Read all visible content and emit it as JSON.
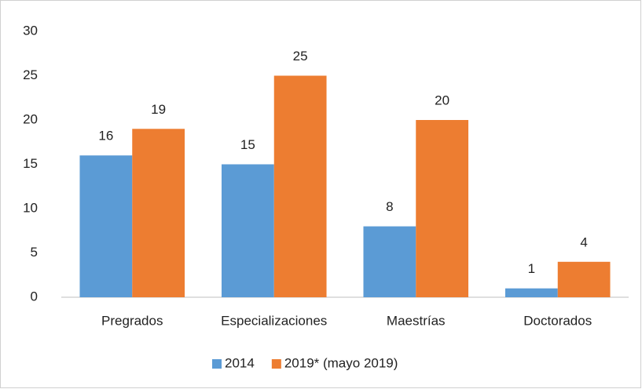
{
  "chart_data": {
    "type": "bar",
    "categories": [
      "Pregrados",
      "Especializaciones",
      "Maestrías",
      "Doctorados"
    ],
    "series": [
      {
        "name": "2014",
        "color": "#5b9bd5",
        "values": [
          16,
          15,
          8,
          1
        ]
      },
      {
        "name": "2019* (mayo 2019)",
        "color": "#ed7d31",
        "values": [
          19,
          25,
          20,
          4
        ]
      }
    ],
    "ylim": [
      0,
      30
    ],
    "yticks": [
      0,
      5,
      10,
      15,
      20,
      25,
      30
    ],
    "grid": false,
    "legend": "bottom"
  }
}
